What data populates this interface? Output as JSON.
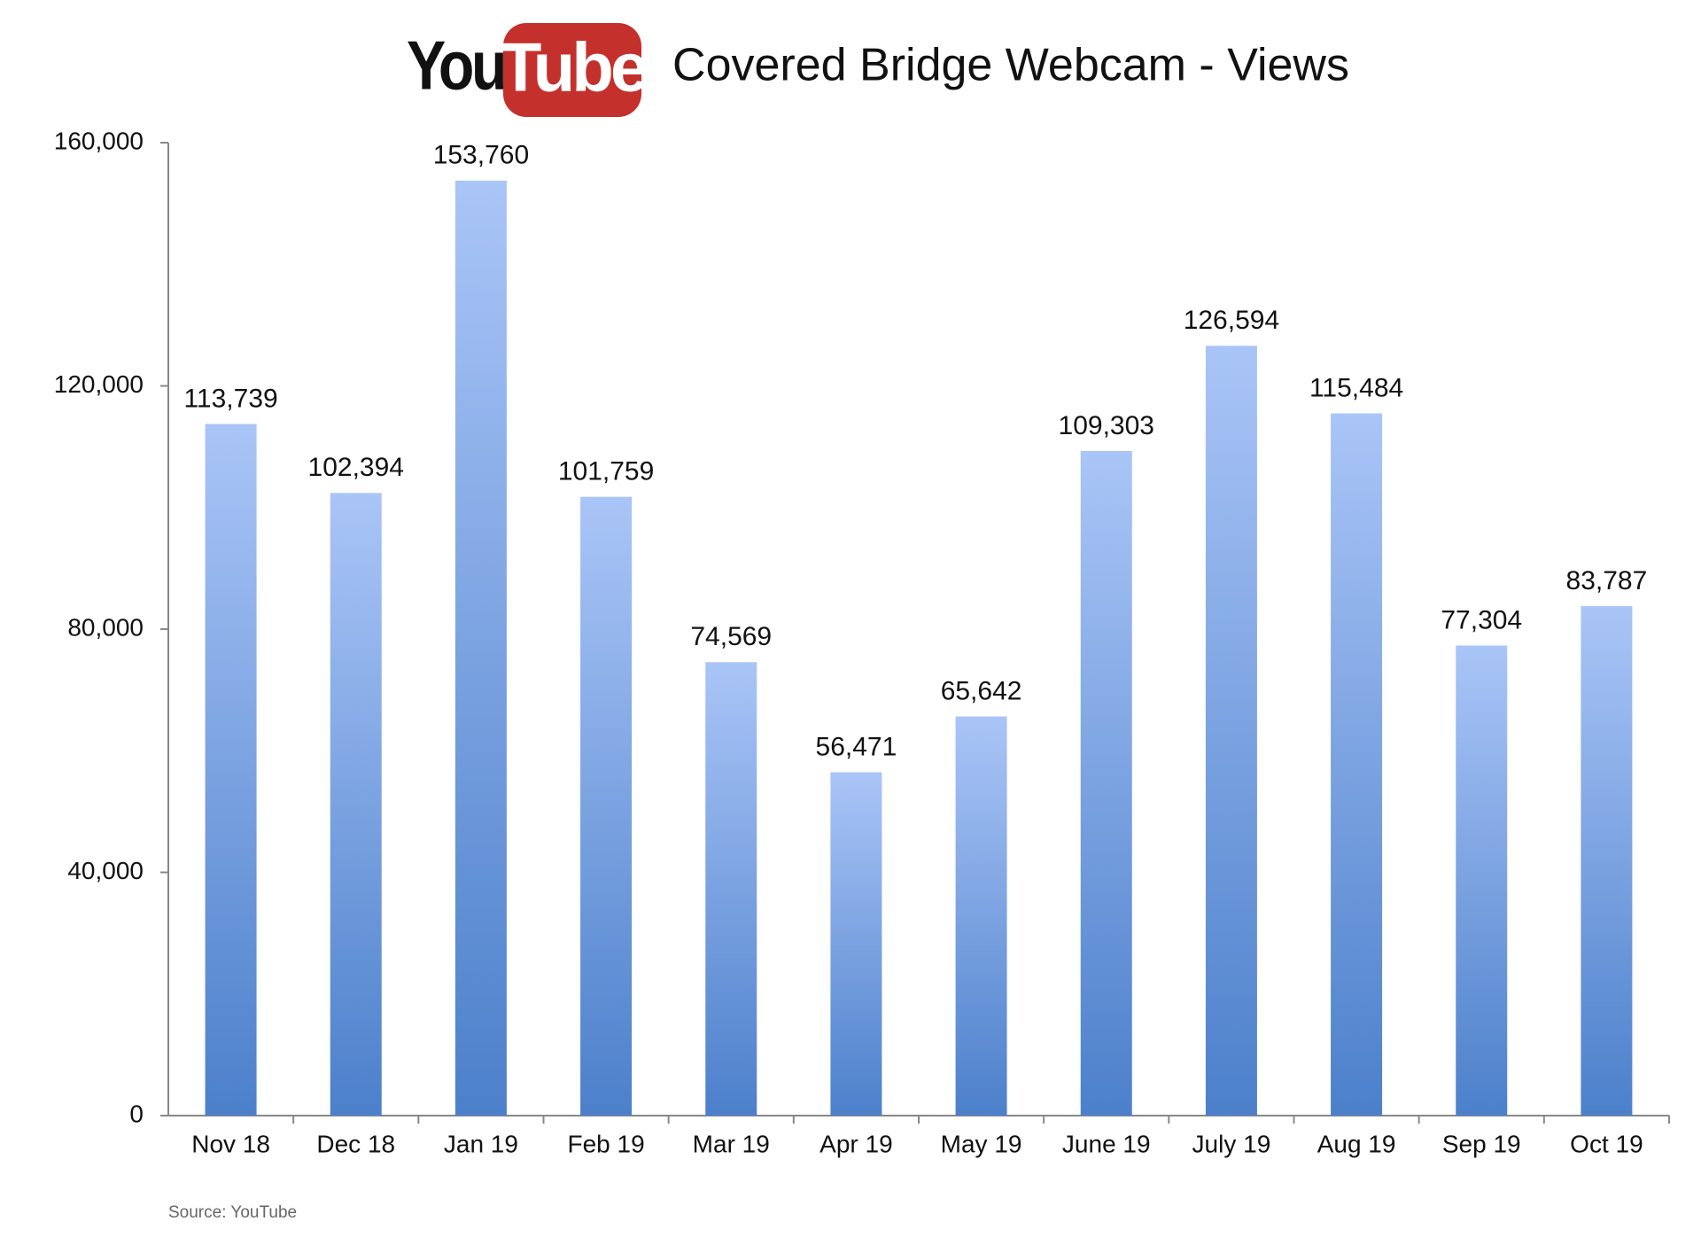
{
  "chart_data": {
    "type": "bar",
    "logo": {
      "you": "You",
      "tube": "Tube"
    },
    "title": "Covered Bridge Webcam - Views",
    "source": "Source: YouTube",
    "categories": [
      "Nov 18",
      "Dec 18",
      "Jan 19",
      "Feb 19",
      "Mar 19",
      "Apr 19",
      "May 19",
      "June 19",
      "July 19",
      "Aug 19",
      "Sep 19",
      "Oct 19"
    ],
    "values": [
      113739,
      102394,
      153760,
      101759,
      74569,
      56471,
      65642,
      109303,
      126594,
      115484,
      77304,
      83787
    ],
    "value_labels": [
      "113,739",
      "102,394",
      "153,760",
      "101,759",
      "74,569",
      "56,471",
      "65,642",
      "109,303",
      "126,594",
      "115,484",
      "77,304",
      "83,787"
    ],
    "color": "#5a8ad2",
    "ylim": [
      0,
      160000
    ],
    "yticks": [
      0,
      {
        "value": 40000,
        "label": "40,000"
      },
      {
        "value": 80000,
        "label": "80,000"
      },
      {
        "value": 120000,
        "label": "120,000"
      },
      {
        "value": 160000,
        "label": "160,000"
      }
    ],
    "grid": false
  }
}
